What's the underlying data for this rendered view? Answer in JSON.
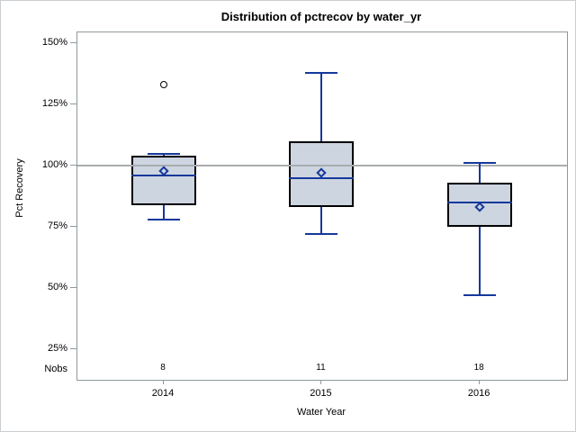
{
  "title": "Distribution of pctrecov by water_yr",
  "y_axis": {
    "title": "Pct Recovery",
    "tick_labels": [
      "150%",
      "125%",
      "100%",
      "75%",
      "50%",
      "25%"
    ],
    "tick_values": [
      150,
      125,
      100,
      75,
      50,
      25
    ],
    "reference_line_value": 100
  },
  "x_axis": {
    "title": "Water Year",
    "categories": [
      "2014",
      "2015",
      "2016"
    ]
  },
  "nobs": {
    "label": "Nobs",
    "values": [
      "8",
      "11",
      "18"
    ]
  },
  "chart_data": {
    "type": "boxplot",
    "title": "Distribution of pctrecov by water_yr",
    "xlabel": "Water Year",
    "ylabel": "Pct Recovery",
    "categories": [
      "2014",
      "2015",
      "2016"
    ],
    "unit": "percent",
    "ylim": [
      12.5,
      154.5
    ],
    "ytick_interval": 25,
    "grid": false,
    "reference_line": 100,
    "series": [
      {
        "category": "2014",
        "nobs": 8,
        "whisker_low": 78,
        "q1": 84,
        "median": 96,
        "q3": 104,
        "whisker_high": 105,
        "mean": 98,
        "outliers": [
          133
        ]
      },
      {
        "category": "2015",
        "nobs": 11,
        "whisker_low": 72,
        "q1": 83,
        "median": 95,
        "q3": 110,
        "whisker_high": 138,
        "mean": 97,
        "outliers": []
      },
      {
        "category": "2016",
        "nobs": 18,
        "whisker_low": 47,
        "q1": 75,
        "median": 85,
        "q3": 93,
        "whisker_high": 101,
        "mean": 83,
        "outliers": []
      }
    ],
    "colors": {
      "box_fill": "#cdd5e1",
      "box_border": "#000000",
      "line_blue": "#15389b",
      "reference_gray": "#a8acae",
      "frame_gray": "#8f989e"
    }
  }
}
